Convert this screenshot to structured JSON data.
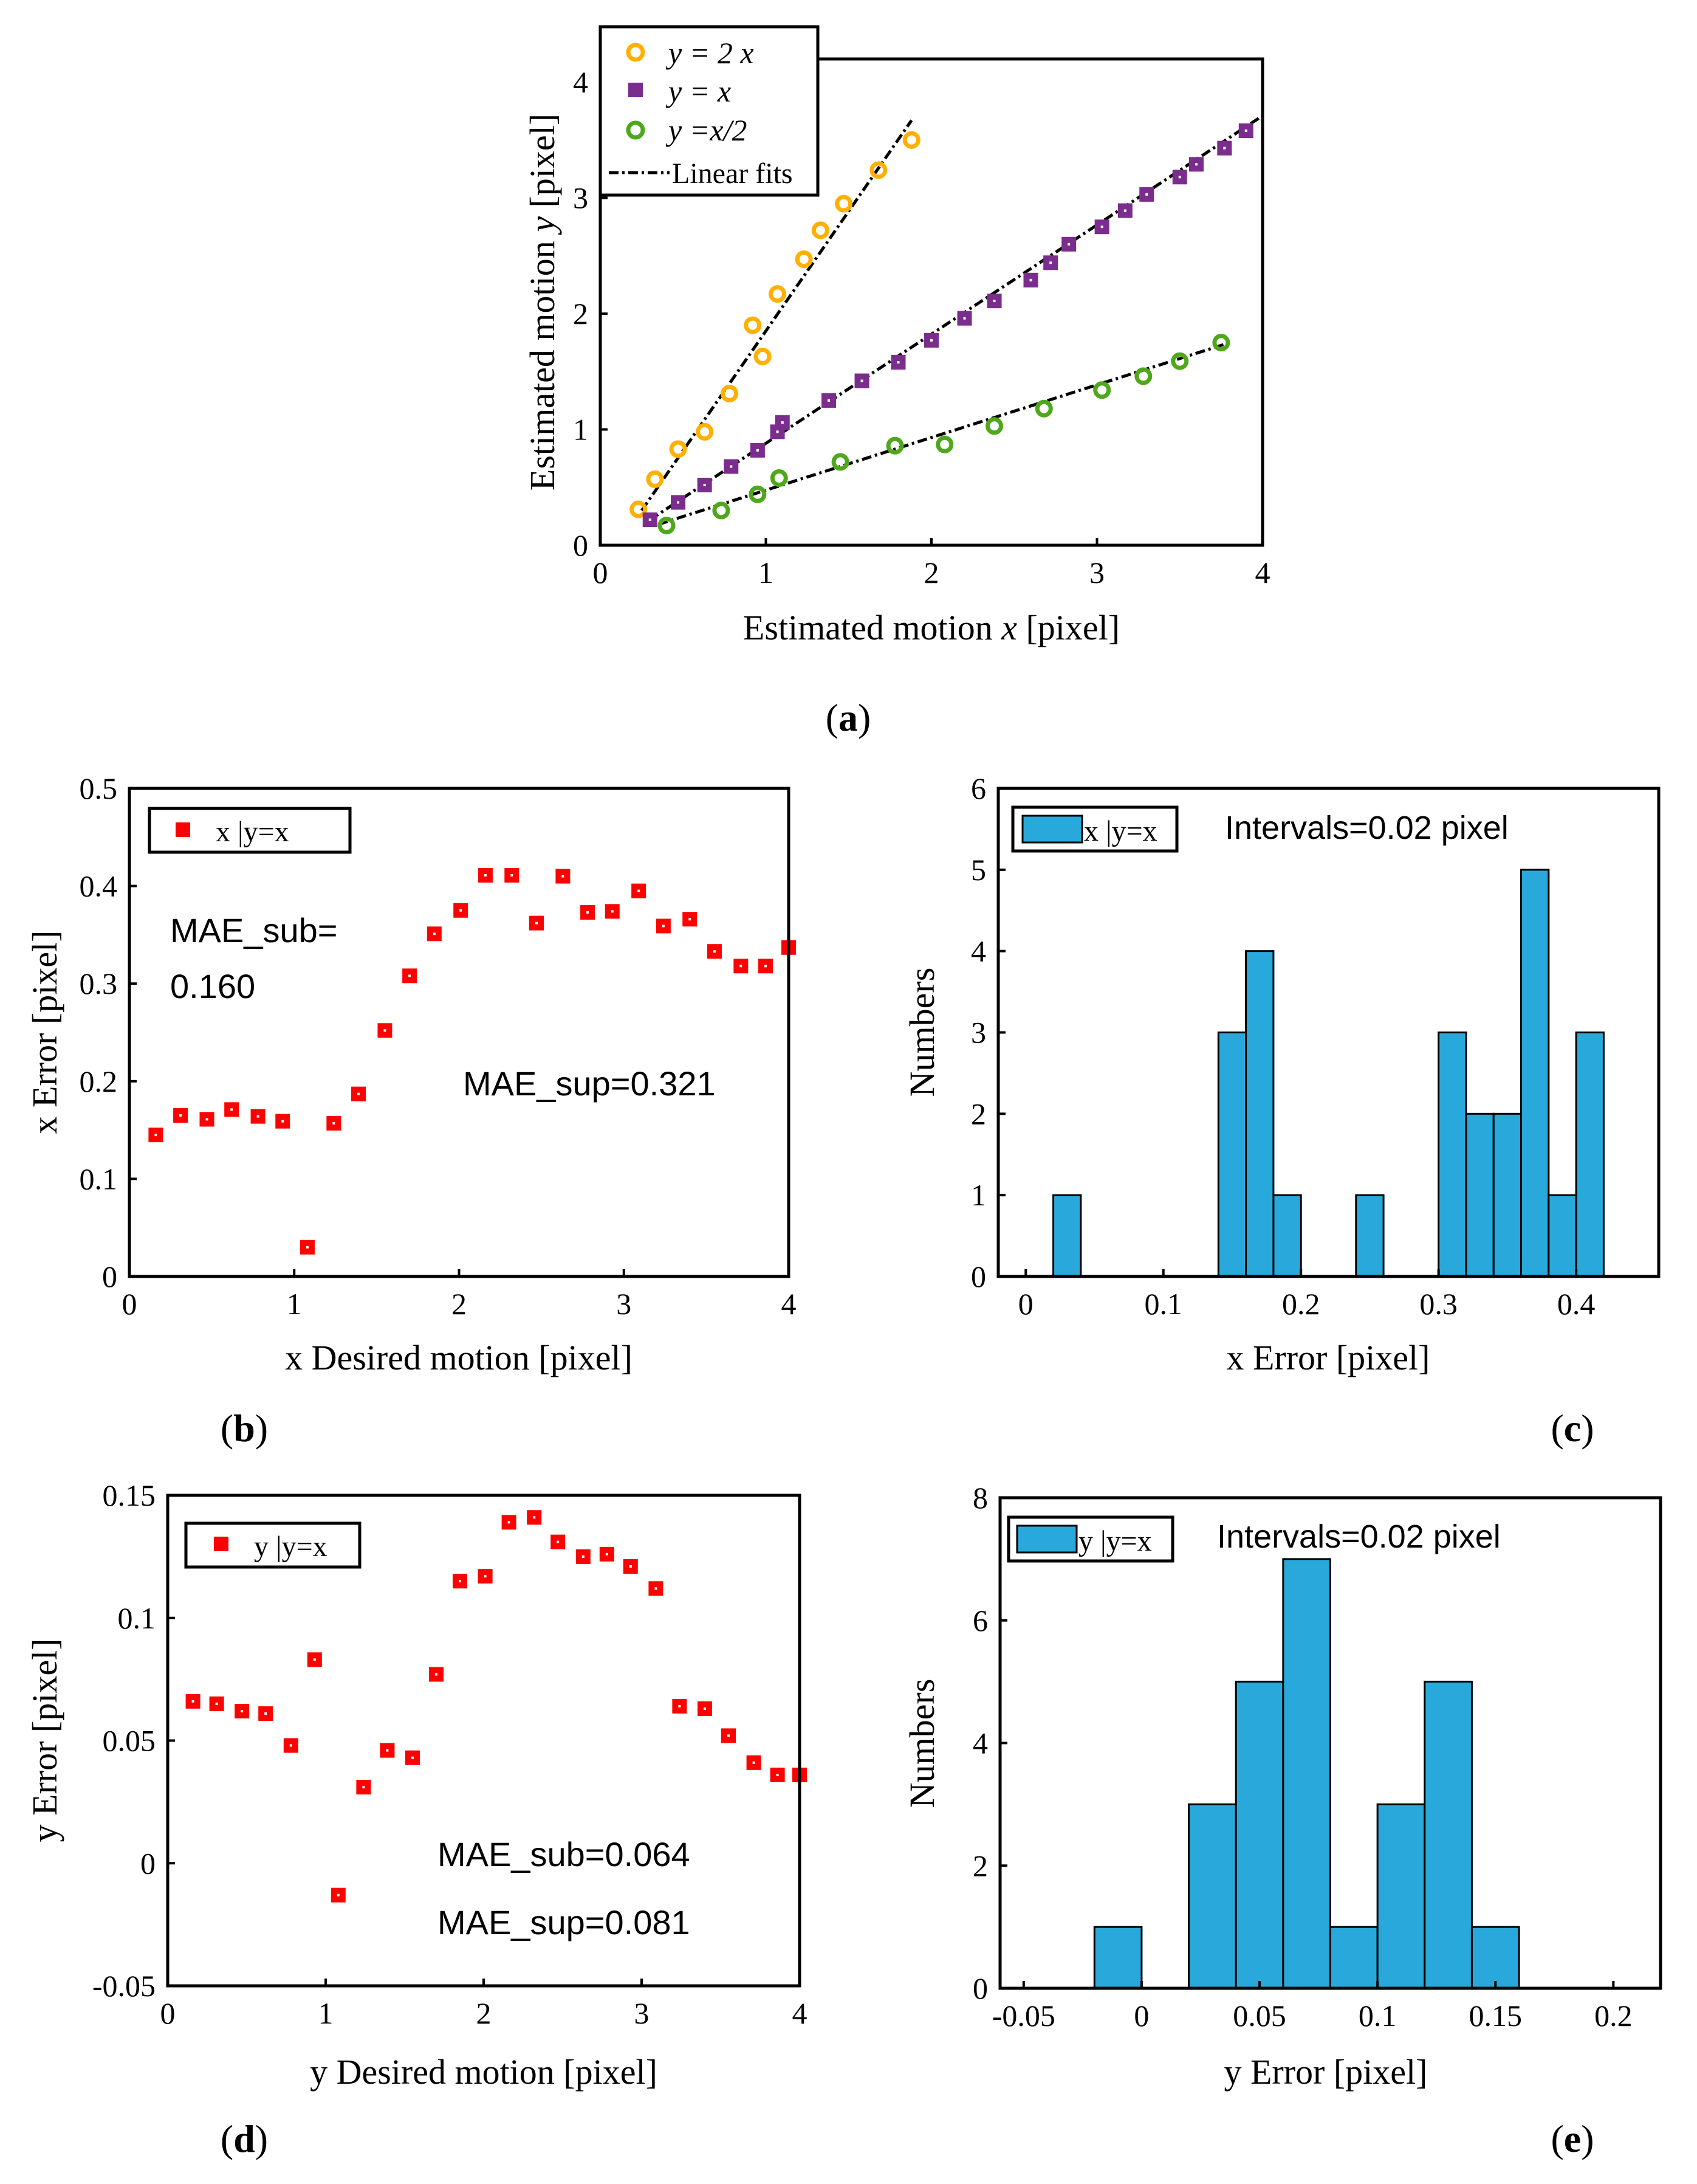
{
  "colors": {
    "orange": "#FFB000",
    "purple": "#7B2D8E",
    "green": "#4FA81C",
    "red": "#FF0000",
    "bar_fill": "#29A9DB",
    "black": "#000000"
  },
  "chart_data": [
    {
      "id": "a",
      "type": "scatter",
      "panel_label": "a",
      "xlabel_text": "Estimated motion ",
      "xlabel_var": "x",
      "xlabel_unit": " [pixel]",
      "ylabel_text": "Estimated motion ",
      "ylabel_var": "y",
      "ylabel_unit": " [pixel]",
      "xlim": [
        0,
        4
      ],
      "ylim": [
        0,
        4.2
      ],
      "xticks": [
        0,
        1,
        2,
        3,
        4
      ],
      "yticks": [
        0,
        1,
        2,
        3,
        4
      ],
      "legend_position": "top-left",
      "series": [
        {
          "name": "y =  2 x",
          "marker": "circle",
          "color": "#FFB000",
          "points": [
            [
              0.23,
              0.31
            ],
            [
              0.33,
              0.57
            ],
            [
              0.47,
              0.83
            ],
            [
              0.63,
              0.98
            ],
            [
              0.78,
              1.31
            ],
            [
              0.92,
              1.9
            ],
            [
              0.98,
              1.63
            ],
            [
              1.07,
              2.17
            ],
            [
              1.23,
              2.47
            ],
            [
              1.33,
              2.72
            ],
            [
              1.47,
              2.95
            ],
            [
              1.68,
              3.24
            ],
            [
              1.88,
              3.5
            ]
          ]
        },
        {
          "name": "y = x",
          "marker": "square",
          "color": "#7B2D8E",
          "points": [
            [
              0.3,
              0.22
            ],
            [
              0.47,
              0.37
            ],
            [
              0.63,
              0.52
            ],
            [
              0.79,
              0.68
            ],
            [
              0.95,
              0.82
            ],
            [
              1.07,
              0.98
            ],
            [
              1.1,
              1.06
            ],
            [
              1.38,
              1.25
            ],
            [
              1.58,
              1.42
            ],
            [
              1.8,
              1.58
            ],
            [
              2.0,
              1.77
            ],
            [
              2.2,
              1.96
            ],
            [
              2.38,
              2.11
            ],
            [
              2.6,
              2.29
            ],
            [
              2.72,
              2.44
            ],
            [
              2.83,
              2.6
            ],
            [
              3.03,
              2.75
            ],
            [
              3.17,
              2.89
            ],
            [
              3.3,
              3.03
            ],
            [
              3.5,
              3.18
            ],
            [
              3.6,
              3.29
            ],
            [
              3.77,
              3.43
            ],
            [
              3.9,
              3.58
            ]
          ]
        },
        {
          "name": "y =x/2",
          "marker": "circle",
          "color": "#4FA81C",
          "points": [
            [
              0.4,
              0.17
            ],
            [
              0.73,
              0.3
            ],
            [
              0.95,
              0.44
            ],
            [
              1.08,
              0.58
            ],
            [
              1.45,
              0.72
            ],
            [
              1.78,
              0.86
            ],
            [
              2.08,
              0.87
            ],
            [
              2.38,
              1.03
            ],
            [
              2.68,
              1.18
            ],
            [
              3.03,
              1.34
            ],
            [
              3.28,
              1.46
            ],
            [
              3.5,
              1.59
            ],
            [
              3.75,
              1.75
            ]
          ]
        }
      ],
      "fits": [
        {
          "x": [
            0.25,
            1.88
          ],
          "y": [
            0.3,
            3.67
          ]
        },
        {
          "x": [
            0.3,
            3.99
          ],
          "y": [
            0.22,
            3.7
          ]
        },
        {
          "x": [
            0.35,
            3.78
          ],
          "y": [
            0.18,
            1.74
          ]
        }
      ],
      "fit_legend": "Linear fits"
    },
    {
      "id": "b",
      "type": "scatter",
      "panel_label": "b",
      "xlabel": "x Desired motion [pixel]",
      "ylabel": "x Error [pixel]",
      "xlim": [
        0,
        4
      ],
      "ylim": [
        0,
        0.5
      ],
      "xticks": [
        0,
        1,
        2,
        3,
        4
      ],
      "yticks": [
        0,
        0.1,
        0.2,
        0.3,
        0.4,
        0.5
      ],
      "tick_labels_y": [
        "0",
        "0.1",
        "0.2",
        "0.3",
        "0.4",
        "0.5"
      ],
      "legend_position": "top-left",
      "series": [
        {
          "name": "x |y=x",
          "marker": "square",
          "color": "#FF0000",
          "x": [
            0.16,
            0.31,
            0.47,
            0.62,
            0.78,
            0.93,
            1.08,
            1.24,
            1.39,
            1.55,
            1.7,
            1.85,
            2.01,
            2.16,
            2.32,
            2.47,
            2.63,
            2.78,
            2.93,
            3.09,
            3.24,
            3.4,
            3.55,
            3.71,
            3.86,
            4.0
          ],
          "y": [
            0.145,
            0.165,
            0.161,
            0.171,
            0.164,
            0.159,
            0.03,
            0.157,
            0.187,
            0.252,
            0.308,
            0.351,
            0.375,
            0.411,
            0.411,
            0.362,
            0.41,
            0.373,
            0.374,
            0.395,
            0.359,
            0.366,
            0.333,
            0.318,
            0.318,
            0.337
          ]
        }
      ],
      "annotations": [
        "MAE_sub=",
        "0.160",
        "MAE_sup=0.321"
      ]
    },
    {
      "id": "c",
      "type": "bar",
      "panel_label": "c",
      "xlabel": "x Error [pixel]",
      "ylabel": "Numbers",
      "xlim": [
        -0.02,
        0.46
      ],
      "ylim": [
        0,
        6
      ],
      "xticks": [
        0,
        0.1,
        0.2,
        0.3,
        0.4
      ],
      "tick_labels_x": [
        "0",
        "0.1",
        "0.2",
        "0.3",
        "0.4"
      ],
      "yticks": [
        0,
        1,
        2,
        3,
        4,
        5,
        6
      ],
      "legend_position": "top-left",
      "bin_width": 0.02,
      "bin_edges_start": [
        0.02,
        0.14,
        0.16,
        0.18,
        0.24,
        0.3,
        0.32,
        0.34,
        0.36,
        0.38,
        0.4
      ],
      "counts": [
        1,
        3,
        4,
        1,
        1,
        3,
        2,
        2,
        5,
        1,
        3
      ],
      "series_name": "x |y=x",
      "annotation": "Intervals=0.02 pixel"
    },
    {
      "id": "d",
      "type": "scatter",
      "panel_label": "d",
      "xlabel": "y Desired motion [pixel]",
      "ylabel": "y Error [pixel]",
      "xlim": [
        0,
        4
      ],
      "ylim": [
        -0.05,
        0.15
      ],
      "xticks": [
        0,
        1,
        2,
        3,
        4
      ],
      "yticks": [
        -0.05,
        0,
        0.05,
        0.1,
        0.15
      ],
      "tick_labels_y": [
        "-0.05",
        "0",
        "0.05",
        "0.1",
        "0.15"
      ],
      "legend_position": "top-left",
      "series": [
        {
          "name": "y |y=x",
          "marker": "square",
          "color": "#FF0000",
          "x": [
            0.16,
            0.31,
            0.47,
            0.62,
            0.78,
            0.93,
            1.08,
            1.24,
            1.39,
            1.55,
            1.7,
            1.85,
            2.01,
            2.16,
            2.32,
            2.47,
            2.63,
            2.78,
            2.93,
            3.09,
            3.24,
            3.4,
            3.55,
            3.71,
            3.86,
            4.0
          ],
          "y": [
            0.066,
            0.065,
            0.062,
            0.061,
            0.048,
            0.083,
            -0.013,
            0.031,
            0.046,
            0.043,
            0.077,
            0.115,
            0.117,
            0.139,
            0.141,
            0.131,
            0.125,
            0.126,
            0.121,
            0.112,
            0.064,
            0.063,
            0.052,
            0.041,
            0.036,
            0.036
          ]
        }
      ],
      "annotations": [
        "MAE_sub=0.064",
        "MAE_sup=0.081"
      ]
    },
    {
      "id": "e",
      "type": "bar",
      "panel_label": "e",
      "xlabel": "y Error [pixel]",
      "ylabel": "Numbers",
      "xlim": [
        -0.06,
        0.22
      ],
      "ylim": [
        0,
        8
      ],
      "xticks": [
        -0.05,
        0,
        0.05,
        0.1,
        0.15,
        0.2
      ],
      "tick_labels_x": [
        "-0.05",
        "0",
        "0.05",
        "0.1",
        "0.15",
        "0.2"
      ],
      "yticks": [
        0,
        2,
        4,
        6,
        8
      ],
      "legend_position": "top-left",
      "bin_width": 0.02,
      "bin_edges_start": [
        -0.02,
        0.02,
        0.04,
        0.06,
        0.08,
        0.1,
        0.12,
        0.14
      ],
      "counts": [
        1,
        3,
        5,
        7,
        1,
        3,
        5,
        1
      ],
      "series_name": "y |y=x",
      "annotation": "Intervals=0.02 pixel"
    }
  ]
}
